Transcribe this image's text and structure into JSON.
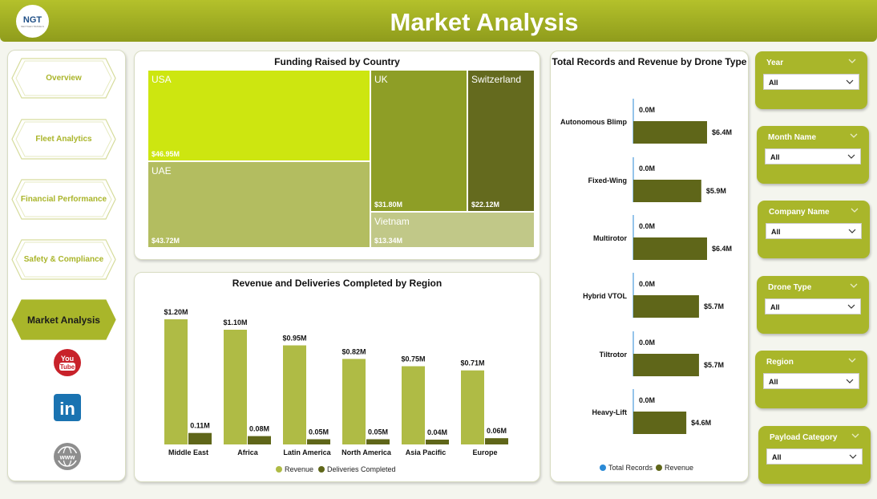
{
  "header": {
    "title": "Market Analysis",
    "logo_text": "NGT",
    "logo_subtext": "NEXTGEN TRAVELS",
    "bg_color": "#a3b023"
  },
  "nav": {
    "items": [
      {
        "label": "Overview",
        "active": false
      },
      {
        "label": "Fleet Analytics",
        "active": false
      },
      {
        "label": "Financial Performance",
        "active": false
      },
      {
        "label": "Safety & Compliance",
        "active": false
      },
      {
        "label": "Market Analysis",
        "active": true
      }
    ],
    "social": [
      {
        "name": "youtube-icon",
        "text": "You Tube"
      },
      {
        "name": "linkedin-icon",
        "text": "in"
      },
      {
        "name": "globe-icon",
        "text": "www"
      }
    ]
  },
  "treemap": {
    "title": "Funding Raised by Country",
    "items": [
      {
        "country": "USA",
        "value": "$46.95M",
        "color": "#cde610"
      },
      {
        "country": "UAE",
        "value": "$43.72M",
        "color": "#b3bd60"
      },
      {
        "country": "UK",
        "value": "$31.80M",
        "color": "#8e9e26"
      },
      {
        "country": "Switzerland",
        "value": "$22.12M",
        "color": "#646a1e"
      },
      {
        "country": "Vietnam",
        "value": "$13.34M",
        "color": "#c1c888"
      }
    ]
  },
  "region_chart": {
    "title": "Revenue and Deliveries Completed by Region",
    "legend": [
      "Revenue",
      "Deliveries Completed"
    ],
    "colors": {
      "revenue": "#afbb45",
      "deliveries": "#5f6619"
    }
  },
  "drone_chart": {
    "title": "Total Records and Revenue by Drone Type",
    "legend": [
      "Total Records",
      "Revenue"
    ],
    "colors": {
      "records": "#2b8ad6",
      "revenue": "#5f6619"
    }
  },
  "filters": [
    {
      "label": "Year",
      "value": "All"
    },
    {
      "label": "Month Name",
      "value": "All"
    },
    {
      "label": "Company Name",
      "value": "All"
    },
    {
      "label": "Drone Type",
      "value": "All"
    },
    {
      "label": "Region",
      "value": "All"
    },
    {
      "label": "Payload Category",
      "value": "All"
    }
  ],
  "chart_data": [
    {
      "type": "bar",
      "title": "Revenue and Deliveries Completed by Region",
      "categories": [
        "Middle East",
        "Africa",
        "Latin America",
        "North America",
        "Asia Pacific",
        "Europe"
      ],
      "series": [
        {
          "name": "Revenue",
          "values": [
            1.2,
            1.1,
            0.95,
            0.82,
            0.75,
            0.71
          ],
          "labels": [
            "$1.20M",
            "$1.10M",
            "$0.95M",
            "$0.82M",
            "$0.75M",
            "$0.71M"
          ]
        },
        {
          "name": "Deliveries Completed",
          "values": [
            0.11,
            0.08,
            0.05,
            0.05,
            0.04,
            0.06
          ],
          "labels": [
            "0.11M",
            "0.08M",
            "0.05M",
            "0.05M",
            "0.04M",
            "0.06M"
          ]
        }
      ]
    },
    {
      "type": "bar",
      "orientation": "horizontal",
      "title": "Total Records and Revenue by Drone Type",
      "categories": [
        "Autonomous Blimp",
        "Fixed-Wing",
        "Multirotor",
        "Hybrid VTOL",
        "Tiltrotor",
        "Heavy-Lift"
      ],
      "series": [
        {
          "name": "Total Records",
          "values": [
            0.0,
            0.0,
            0.0,
            0.0,
            0.0,
            0.0
          ],
          "labels": [
            "0.0M",
            "0.0M",
            "0.0M",
            "0.0M",
            "0.0M",
            "0.0M"
          ]
        },
        {
          "name": "Revenue",
          "values": [
            6.4,
            5.9,
            6.4,
            5.7,
            5.7,
            4.6
          ],
          "labels": [
            "$6.4M",
            "$5.9M",
            "$6.4M",
            "$5.7M",
            "$5.7M",
            "$4.6M"
          ]
        }
      ]
    },
    {
      "type": "treemap",
      "title": "Funding Raised by Country",
      "categories": [
        "USA",
        "UAE",
        "UK",
        "Switzerland",
        "Vietnam"
      ],
      "values": [
        46.95,
        43.72,
        31.8,
        22.12,
        13.34
      ]
    }
  ]
}
